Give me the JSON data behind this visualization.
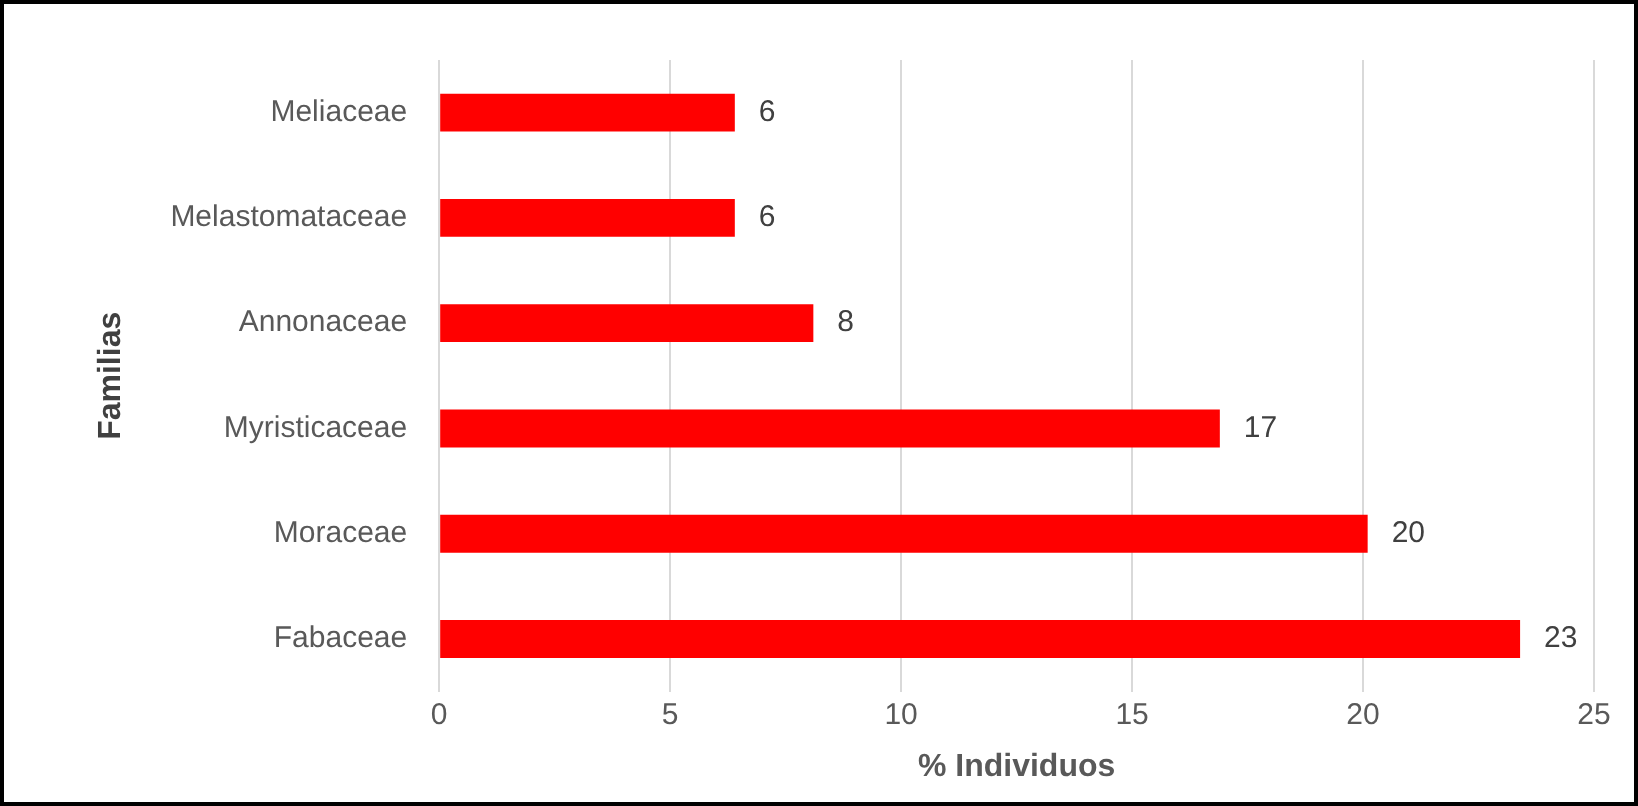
{
  "chart_data": {
    "type": "bar",
    "orientation": "horizontal",
    "xlabel": "% Individuos",
    "ylabel": "Familias",
    "categories": [
      "Meliaceae",
      "Melastomataceae",
      "Annonaceae",
      "Myristicaceae",
      "Moraceae",
      "Fabaceae"
    ],
    "values": [
      6.4,
      6.4,
      8.1,
      16.9,
      20.1,
      23.4
    ],
    "color": "#ff0000",
    "value_labels": [
      "6",
      "6",
      "8",
      "17",
      "20",
      "23"
    ],
    "xlim": [
      0,
      25
    ],
    "xticks": [
      0,
      5,
      10,
      15,
      20,
      25
    ],
    "grid": "x",
    "legend": false
  }
}
